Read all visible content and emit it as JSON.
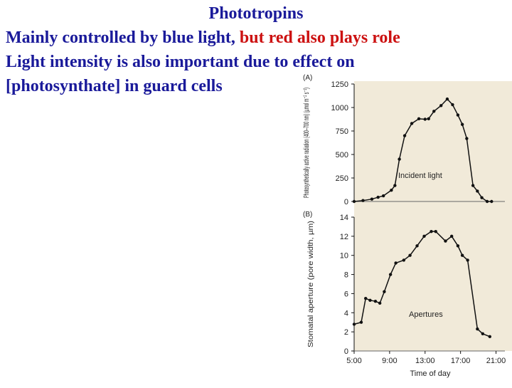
{
  "slide": {
    "title": "Phototropins",
    "line1_blue": "Mainly controlled by blue light,",
    "line1_red": "but red also plays role",
    "line2": "Light intensity is also important due to effect on",
    "line3": "[photosynthate] in guard cells"
  },
  "colors": {
    "text_blue": "#1a1a9a",
    "text_red": "#cc1111",
    "panel_bg": "#f1ead9",
    "line": "#111111"
  },
  "chart_data": [
    {
      "panel": "(A)",
      "type": "line",
      "ylabel": "Photosynthetically active radiation (400–700 nm) (µmol m⁻² s⁻¹)",
      "yticks": [
        0,
        250,
        500,
        750,
        1000,
        1250
      ],
      "ylim": [
        0,
        1250
      ],
      "xlim": [
        5,
        22
      ],
      "annotation": "Incident light",
      "series": [
        {
          "x": [
            5.0,
            6.0,
            7.0,
            7.7,
            8.3,
            9.2,
            9.6,
            10.1,
            10.7,
            11.5,
            12.3,
            13.0,
            13.4,
            14.0,
            14.8,
            15.5,
            16.1,
            16.7,
            17.2,
            17.7,
            18.4,
            18.9,
            19.4,
            20.0,
            20.5
          ],
          "y": [
            0,
            10,
            25,
            45,
            60,
            120,
            170,
            450,
            700,
            830,
            880,
            875,
            880,
            960,
            1020,
            1090,
            1030,
            920,
            820,
            670,
            170,
            110,
            40,
            0,
            0
          ]
        }
      ]
    },
    {
      "panel": "(B)",
      "type": "line",
      "ylabel": "Stomatal aperture (pore width, µm)",
      "xlabel": "Time of day",
      "xticks": [
        "5:00",
        "9:00",
        "13:00",
        "17:00",
        "21:00"
      ],
      "xtick_values": [
        5,
        9,
        13,
        17,
        21
      ],
      "yticks": [
        0,
        2,
        4,
        6,
        8,
        10,
        12,
        14
      ],
      "ylim": [
        0,
        14
      ],
      "xlim": [
        5,
        22
      ],
      "annotation": "Apertures",
      "series": [
        {
          "x": [
            5.0,
            5.8,
            6.3,
            6.8,
            7.4,
            7.9,
            8.4,
            9.1,
            9.7,
            10.6,
            11.3,
            12.1,
            12.9,
            13.7,
            14.2,
            15.3,
            16.0,
            16.7,
            17.2,
            17.8,
            18.9,
            19.5,
            20.3
          ],
          "y": [
            2.8,
            3.0,
            5.5,
            5.3,
            5.2,
            5.0,
            6.2,
            8.0,
            9.2,
            9.5,
            10.0,
            11.0,
            12.0,
            12.5,
            12.5,
            11.5,
            12.0,
            11.0,
            10.0,
            9.5,
            2.3,
            1.8,
            1.5
          ]
        }
      ]
    }
  ]
}
